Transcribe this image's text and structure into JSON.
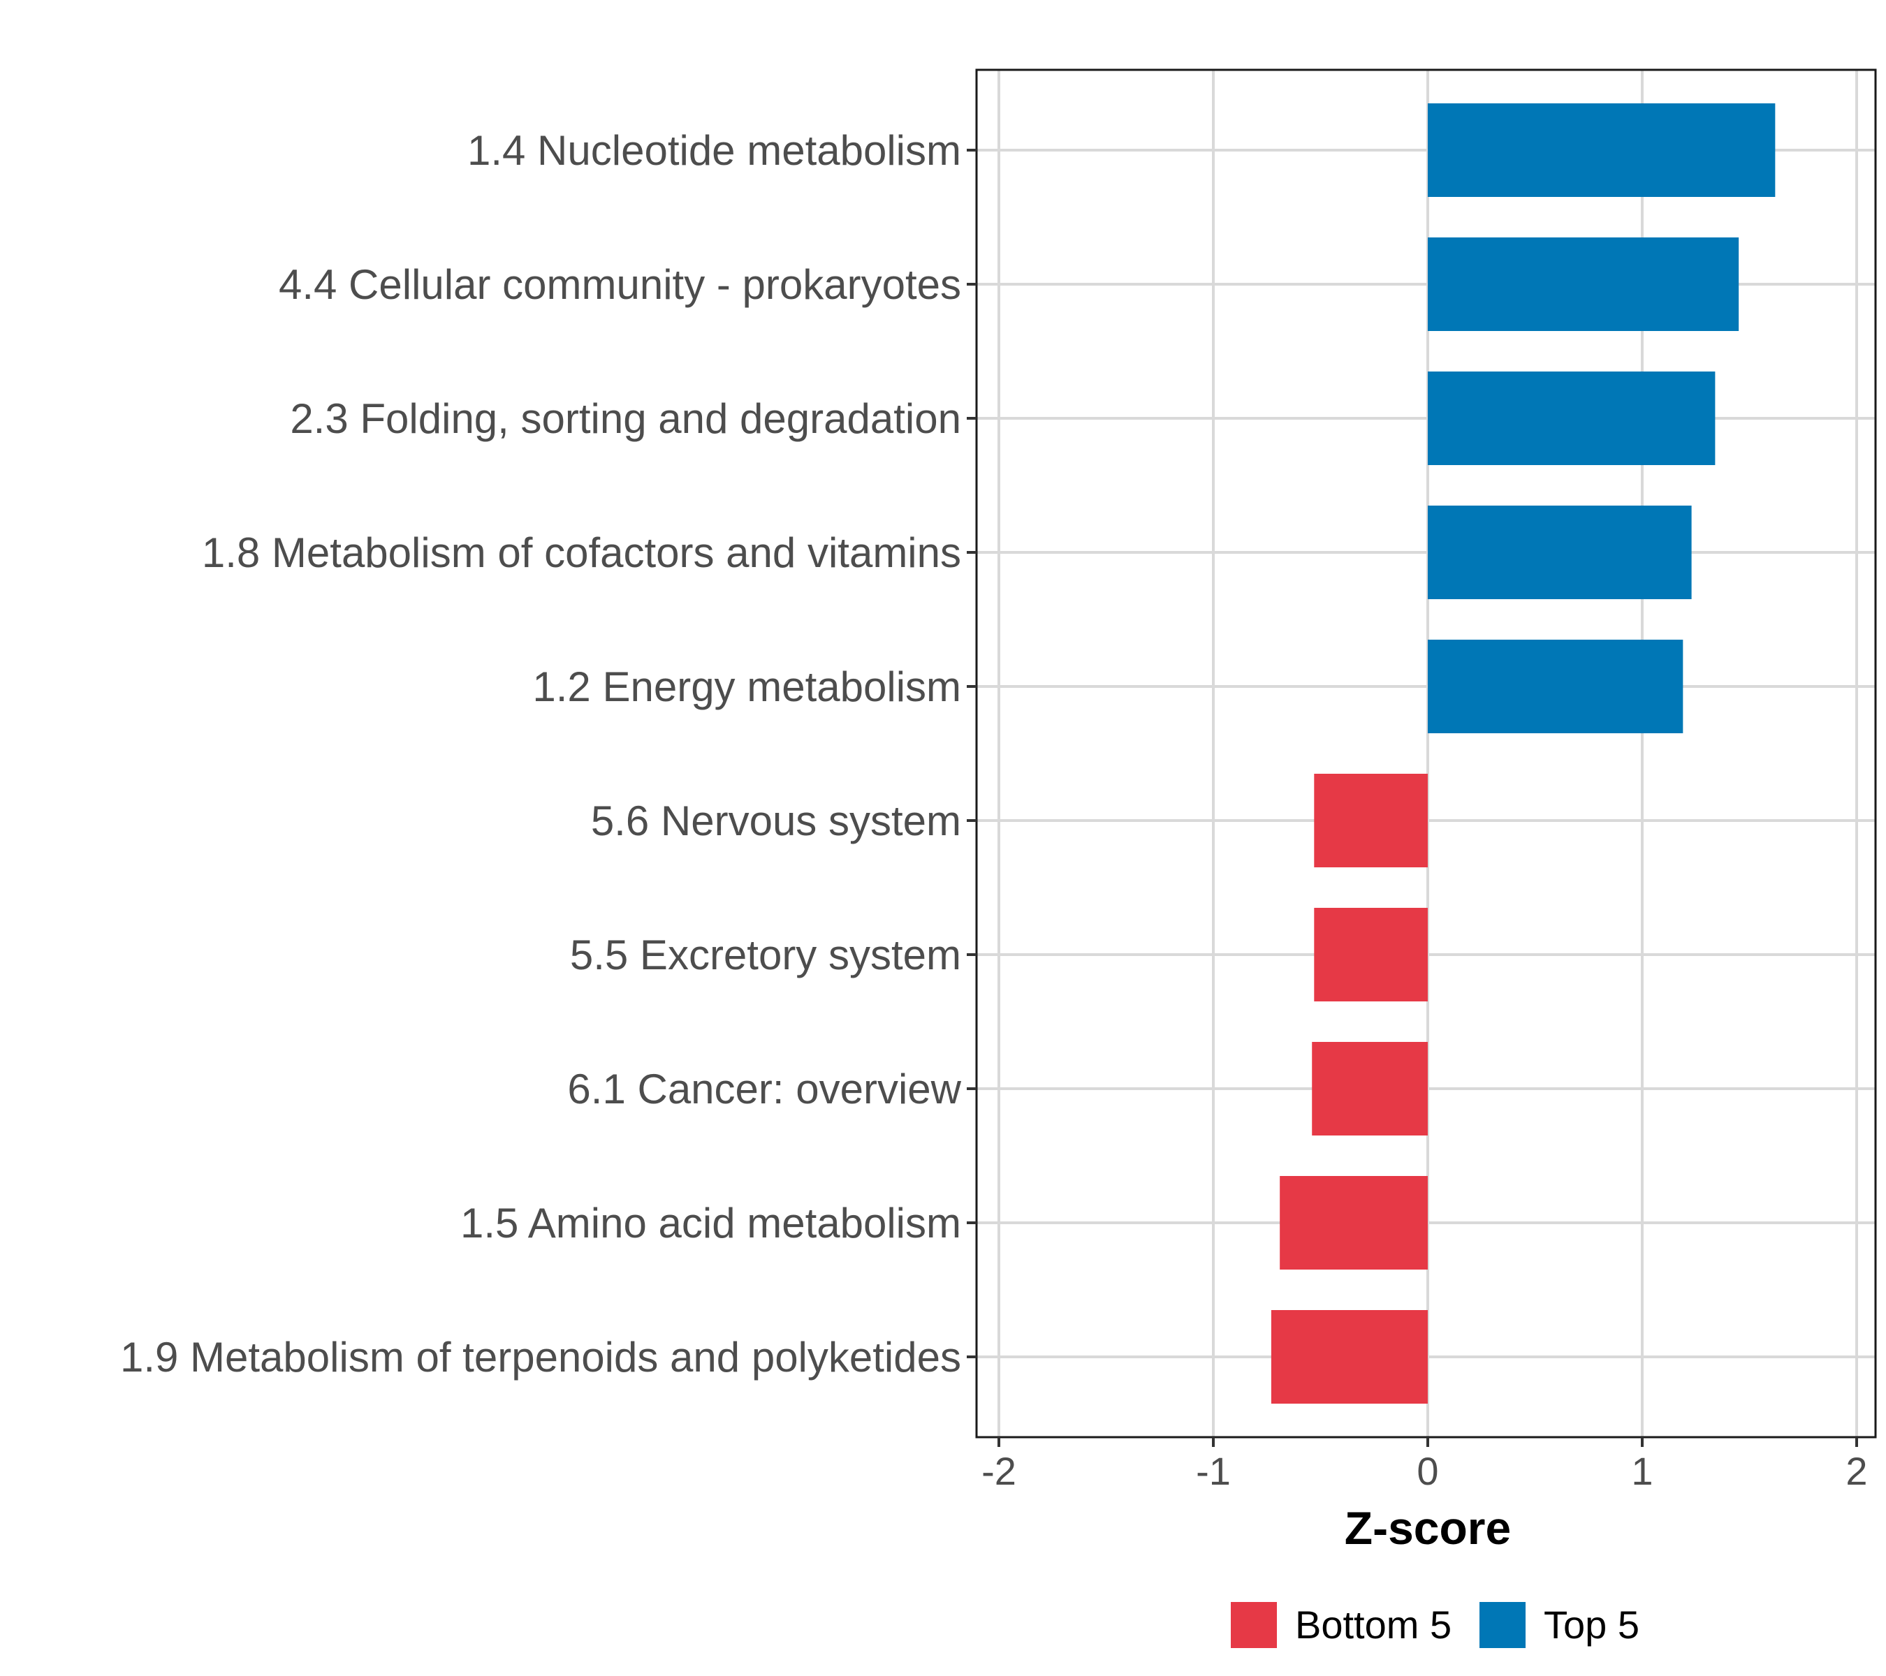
{
  "chart_data": {
    "type": "bar",
    "orientation": "horizontal",
    "title": "",
    "xlabel": "Z-score",
    "ylabel": "",
    "xlim": [
      -2.1,
      2.1
    ],
    "x_ticks": [
      -2,
      -1,
      0,
      1,
      2
    ],
    "x_tick_labels": [
      "-2",
      "-1",
      "0",
      "1",
      "2"
    ],
    "grid": true,
    "legend_position": "bottom",
    "categories": [
      "1.4 Nucleotide metabolism",
      "4.4 Cellular community - prokaryotes",
      "2.3 Folding, sorting and degradation",
      "1.8 Metabolism of cofactors and vitamins",
      "1.2 Energy metabolism",
      "5.6 Nervous system",
      "5.5 Excretory system",
      "6.1 Cancer: overview",
      "1.5 Amino acid metabolism",
      "1.9 Metabolism of terpenoids and polyketides"
    ],
    "values": [
      1.62,
      1.45,
      1.34,
      1.23,
      1.19,
      -0.53,
      -0.53,
      -0.54,
      -0.69,
      -0.73
    ],
    "groups": [
      "Top 5",
      "Top 5",
      "Top 5",
      "Top 5",
      "Top 5",
      "Bottom 5",
      "Bottom 5",
      "Bottom 5",
      "Bottom 5",
      "Bottom 5"
    ],
    "legend": [
      {
        "name": "Bottom 5",
        "color": "#E63946"
      },
      {
        "name": "Top 5",
        "color": "#0077B6"
      }
    ]
  }
}
